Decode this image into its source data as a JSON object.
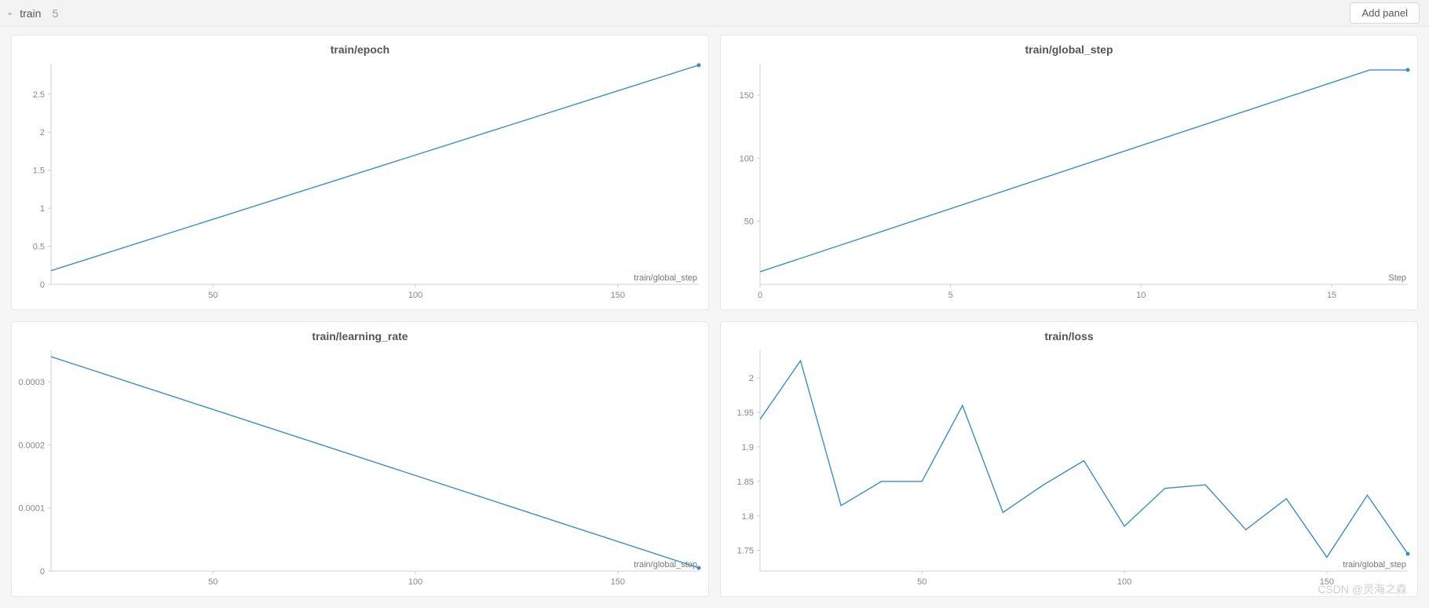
{
  "header": {
    "section_name": "train",
    "panel_count": "5",
    "add_panel_label": "Add panel"
  },
  "watermark": "CSDN @灵海之森",
  "global_style": {
    "background_color": "#f6f6f7",
    "panel_background": "#ffffff",
    "panel_border_color": "#e7e7e9",
    "axis_color": "#d0d0d0",
    "tick_label_color": "#888888",
    "tick_fontsize": 11,
    "title_color": "#555555",
    "title_fontsize": 14,
    "line_color": "#3b8ec9",
    "line_width": 1.4,
    "marker_size": 2.5,
    "marker_color": "#3b8ec9"
  },
  "panels": [
    {
      "id": "epoch",
      "title": "train/epoch",
      "type": "line",
      "x_axis_label": "train/global_step",
      "xlim": [
        10,
        170
      ],
      "ylim": [
        0,
        2.9
      ],
      "xticks": [
        50,
        100,
        150
      ],
      "yticks": [
        0,
        0.5,
        1,
        1.5,
        2,
        2.5
      ],
      "ytick_labels": [
        "0",
        "0.5",
        "1",
        "1.5",
        "2",
        "2.5"
      ],
      "x": [
        10,
        170
      ],
      "y": [
        0.18,
        2.88
      ],
      "end_marker": true
    },
    {
      "id": "global_step",
      "title": "train/global_step",
      "type": "line",
      "x_axis_label": "Step",
      "xlim": [
        0,
        17
      ],
      "ylim": [
        0,
        175
      ],
      "xticks": [
        0,
        5,
        10,
        15
      ],
      "yticks": [
        50,
        100,
        150
      ],
      "ytick_labels": [
        "50",
        "100",
        "150"
      ],
      "x": [
        0,
        16,
        17
      ],
      "y": [
        10,
        170,
        170
      ],
      "end_marker": true
    },
    {
      "id": "learning_rate",
      "title": "train/learning_rate",
      "type": "line",
      "x_axis_label": "train/global_step",
      "xlim": [
        10,
        170
      ],
      "ylim": [
        0,
        0.00035
      ],
      "xticks": [
        50,
        100,
        150
      ],
      "yticks": [
        0,
        0.0001,
        0.0002,
        0.0003
      ],
      "ytick_labels": [
        "0",
        "0.0001",
        "0.0002",
        "0.0003"
      ],
      "x": [
        10,
        170
      ],
      "y": [
        0.00034,
        5e-06
      ],
      "end_marker": true
    },
    {
      "id": "loss",
      "title": "train/loss",
      "type": "line",
      "x_axis_label": "train/global_step",
      "xlim": [
        10,
        170
      ],
      "ylim": [
        1.72,
        2.04
      ],
      "xticks": [
        50,
        100,
        150
      ],
      "yticks": [
        1.75,
        1.8,
        1.85,
        1.9,
        1.95,
        2
      ],
      "ytick_labels": [
        "1.75",
        "1.8",
        "1.85",
        "1.9",
        "1.95",
        "2"
      ],
      "x": [
        10,
        20,
        30,
        40,
        50,
        60,
        70,
        80,
        90,
        100,
        110,
        120,
        130,
        140,
        150,
        160,
        170
      ],
      "y": [
        1.94,
        2.025,
        1.815,
        1.85,
        1.85,
        1.96,
        1.805,
        1.845,
        1.88,
        1.785,
        1.84,
        1.845,
        1.78,
        1.825,
        1.74,
        1.83,
        1.745
      ],
      "end_marker": true
    }
  ]
}
